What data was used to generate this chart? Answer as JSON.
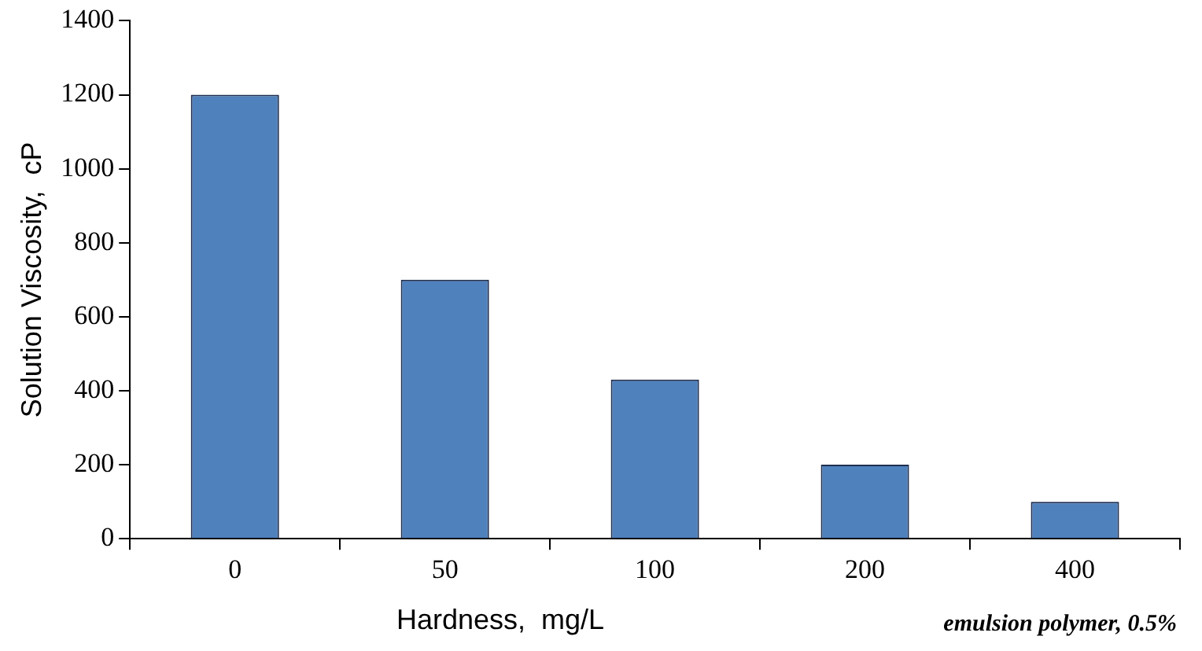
{
  "chart_data": {
    "type": "bar",
    "xlabel": "Hardness,  mg/L",
    "ylabel": "Solution Viscosity,  cP",
    "categories": [
      "0",
      "50",
      "100",
      "200",
      "400"
    ],
    "values": [
      1200,
      700,
      430,
      200,
      100
    ],
    "color": "#4f81bd",
    "ylim": [
      0,
      1400
    ],
    "yticks": [
      0,
      200,
      400,
      600,
      800,
      1000,
      1200,
      1400
    ],
    "grid": false,
    "annotations": [
      "emulsion polymer, 0.5%"
    ]
  }
}
